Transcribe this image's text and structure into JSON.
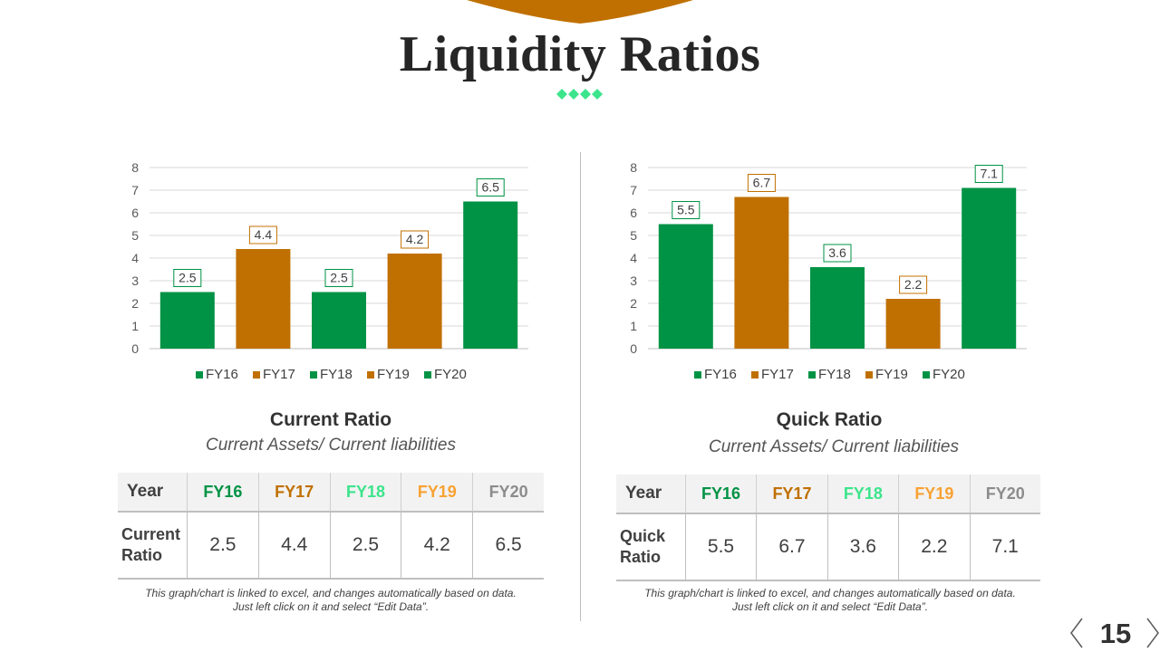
{
  "title": "Liquidity Ratios",
  "colors": {
    "green": "#009245",
    "orange": "#C07000",
    "mint": "#3CE58C",
    "yellow": "#F7A233",
    "gray": "#8C8C8C",
    "title_tab": "#C07000"
  },
  "chart_data": [
    {
      "type": "bar",
      "categories": [
        "FY16",
        "FY17",
        "FY18",
        "FY19",
        "FY20"
      ],
      "values": [
        2.5,
        4.4,
        2.5,
        4.2,
        6.5
      ],
      "bar_colors": [
        "#009245",
        "#C07000",
        "#009245",
        "#C07000",
        "#009245"
      ],
      "ylim": [
        0,
        8
      ],
      "yticks": [
        0,
        1,
        2,
        3,
        4,
        5,
        6,
        7,
        8
      ],
      "grid": true,
      "legend": "bottom",
      "data_labels": true
    },
    {
      "type": "bar",
      "categories": [
        "FY16",
        "FY17",
        "FY18",
        "FY19",
        "FY20"
      ],
      "values": [
        5.5,
        6.7,
        3.6,
        2.2,
        7.1
      ],
      "bar_colors": [
        "#009245",
        "#C07000",
        "#009245",
        "#C07000",
        "#009245"
      ],
      "ylim": [
        0,
        8
      ],
      "yticks": [
        0,
        1,
        2,
        3,
        4,
        5,
        6,
        7,
        8
      ],
      "grid": true,
      "legend": "bottom",
      "data_labels": true
    }
  ],
  "panels": [
    {
      "title": "Current Ratio",
      "subtitle": "Current Assets/ Current liabilities",
      "table": {
        "year_header": "Year",
        "years": [
          "FY16",
          "FY17",
          "FY18",
          "FY19",
          "FY20"
        ],
        "row_label": "Current Ratio",
        "values": [
          "2.5",
          "4.4",
          "2.5",
          "4.2",
          "6.5"
        ]
      },
      "note_line1": "This graph/chart is linked to excel, and changes automatically based on data.",
      "note_line2": "Just left click on it and select “Edit Data”."
    },
    {
      "title": "Quick Ratio",
      "subtitle": "Current Assets/ Current liabilities",
      "table": {
        "year_header": "Year",
        "years": [
          "FY16",
          "FY17",
          "FY18",
          "FY19",
          "FY20"
        ],
        "row_label": "Quick Ratio",
        "values": [
          "5.5",
          "6.7",
          "3.6",
          "2.2",
          "7.1"
        ]
      },
      "note_line1": "This graph/chart is linked to excel, and changes automatically based on data.",
      "note_line2": "Just left click on it and select “Edit Data”."
    }
  ],
  "year_header_colors": [
    "#009245",
    "#C07000",
    "#3CE58C",
    "#F7A233",
    "#8C8C8C"
  ],
  "page_number": "15",
  "icons": {
    "prev": "chevron-left-icon",
    "next": "chevron-right-icon"
  }
}
